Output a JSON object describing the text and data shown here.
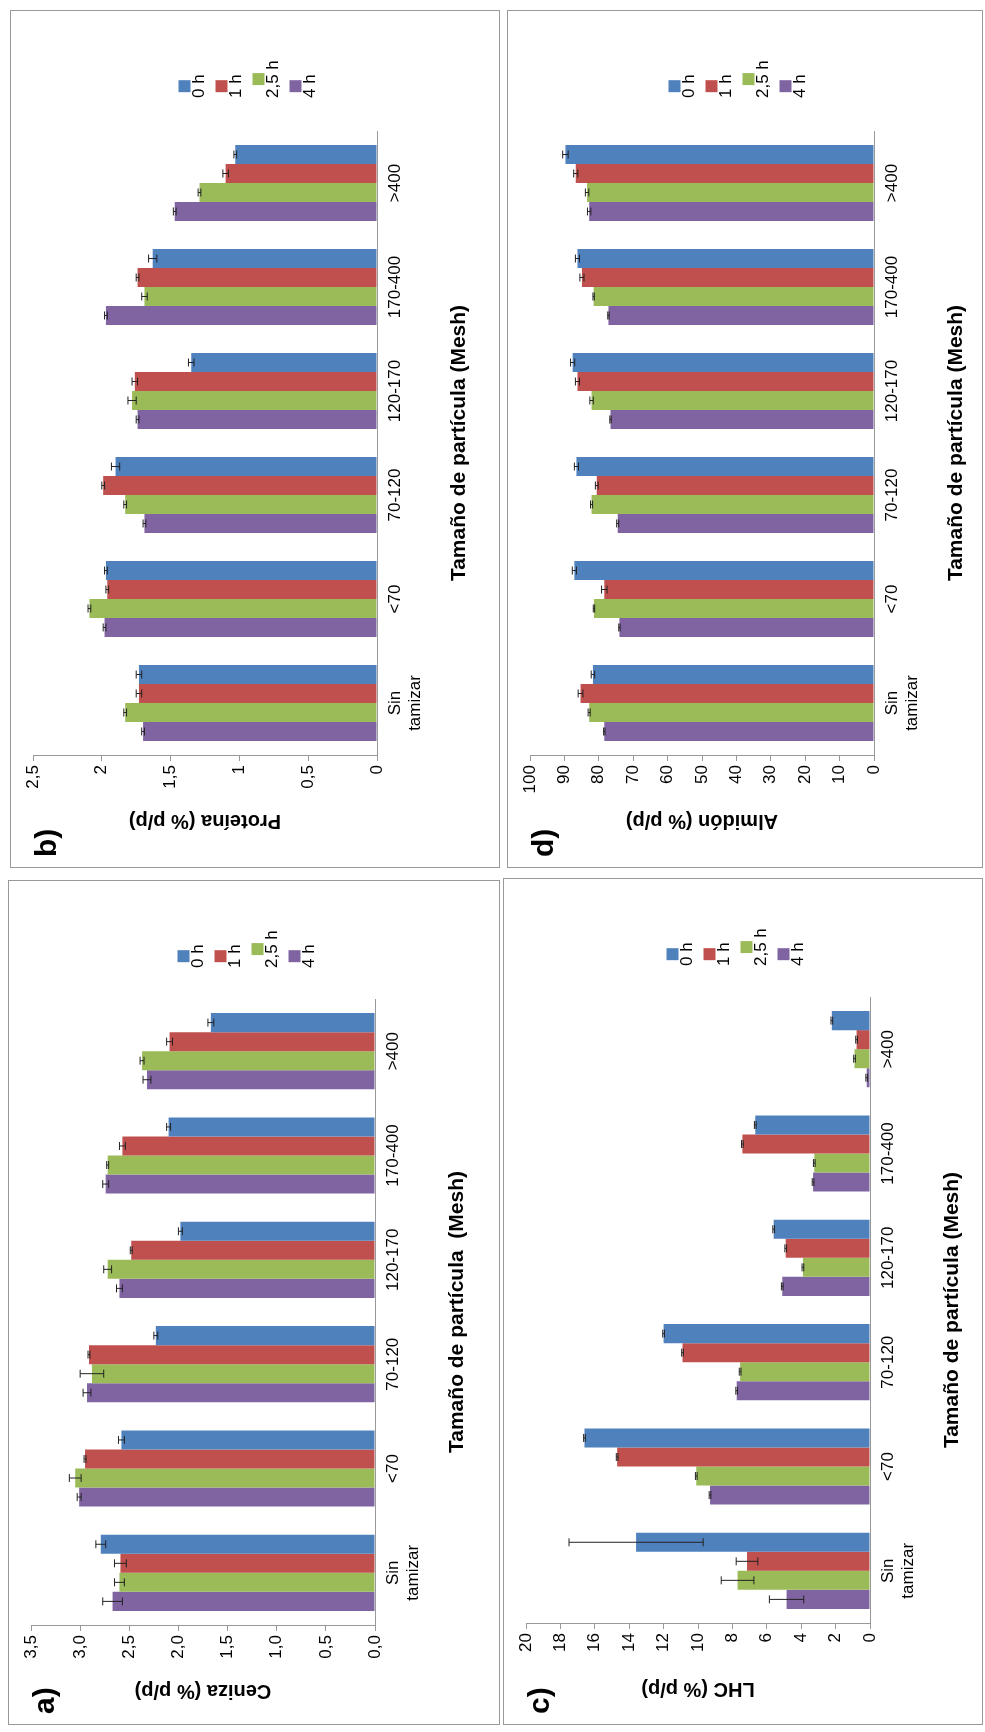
{
  "chart_data": [
    {
      "type": "bar",
      "orientation": "horizontal",
      "title": "b)",
      "ylabel": "Tamaño de partícula (Mesh)",
      "xlabel": "Proteína (% p/p)",
      "categories": [
        ">400",
        "170-400",
        "120-170",
        "70-120",
        "<70",
        "Sin tamizar"
      ],
      "legend": "top",
      "xlim": [
        2.5,
        0
      ],
      "xticks": [
        0,
        {
          "value": 0.5,
          "label": "0,5"
        },
        1,
        {
          "value": 1.5,
          "label": "1,5"
        },
        2,
        {
          "value": 2.5,
          "label": "2,5"
        }
      ],
      "series": [
        {
          "name": "0 h",
          "color": "#4f81bd",
          "values": [
            1.03,
            1.63,
            1.35,
            1.9,
            1.97,
            1.73
          ],
          "errors": [
            0.01,
            0.03,
            0.02,
            0.03,
            0.01,
            0.02
          ]
        },
        {
          "name": "1 h",
          "color": "#c0504d",
          "values": [
            1.1,
            1.74,
            1.76,
            1.99,
            1.96,
            1.73
          ],
          "errors": [
            0.02,
            0.01,
            0.02,
            0.01,
            0.01,
            0.02
          ]
        },
        {
          "name": "2,5 h",
          "color": "#9bbb59",
          "values": [
            1.29,
            1.69,
            1.78,
            1.83,
            2.09,
            1.83
          ],
          "errors": [
            0.01,
            0.02,
            0.03,
            0.01,
            0.01,
            0.01
          ]
        },
        {
          "name": "4 h",
          "color": "#8064a2",
          "values": [
            1.47,
            1.97,
            1.74,
            1.69,
            1.98,
            1.7
          ],
          "errors": [
            0.01,
            0.01,
            0.01,
            0.01,
            0.01,
            0.01
          ]
        }
      ]
    },
    {
      "type": "bar",
      "orientation": "horizontal",
      "title": "d)",
      "ylabel": "Tamaño de partícula (Mesh)",
      "xlabel": "Almidón (% p/p)",
      "categories": [
        ">400",
        "170-400",
        "120-170",
        "70-120",
        "<70",
        "Sin tamizar"
      ],
      "legend": "top",
      "xlim": [
        100,
        0
      ],
      "xticks": [
        0,
        10,
        20,
        30,
        40,
        50,
        60,
        70,
        80,
        90,
        100
      ],
      "series": [
        {
          "name": "0 h",
          "color": "#4f81bd",
          "values": [
            89.7,
            86.2,
            87.6,
            86.5,
            87.1,
            81.7
          ],
          "errors": [
            0.8,
            0.6,
            0.6,
            0.6,
            0.6,
            0.5
          ]
        },
        {
          "name": "1 h",
          "color": "#c0504d",
          "values": [
            86.7,
            84.9,
            86.2,
            80.6,
            78.4,
            85.3
          ],
          "errors": [
            0.6,
            0.6,
            0.6,
            0.4,
            0.8,
            0.7
          ]
        },
        {
          "name": "2,5 h",
          "color": "#9bbb59",
          "values": [
            83.4,
            81.5,
            82.1,
            82.1,
            81.4,
            82.8
          ],
          "errors": [
            0.5,
            0.2,
            0.5,
            0.3,
            0.2,
            0.3
          ]
        },
        {
          "name": "4 h",
          "color": "#8064a2",
          "values": [
            82.8,
            77.2,
            76.6,
            74.5,
            74.0,
            78.4
          ],
          "errors": [
            0.5,
            0.2,
            0.2,
            0.3,
            0.2,
            0.2
          ]
        }
      ]
    },
    {
      "type": "bar",
      "orientation": "horizontal",
      "title": "a)",
      "ylabel": "Tamaño de partícula  (Mesh)",
      "xlabel": "Ceniza (% p/p)",
      "categories": [
        ">400",
        "170-400",
        "120-170",
        "70-120",
        "<70",
        "Sin tamizar"
      ],
      "legend": "top",
      "xlim": [
        3.5,
        0
      ],
      "xticks": [
        {
          "value": 0,
          "label": "0,0"
        },
        {
          "value": 0.5,
          "label": "0,5"
        },
        {
          "value": 1,
          "label": "1,0"
        },
        {
          "value": 1.5,
          "label": "1,5"
        },
        {
          "value": 2,
          "label": "2,0"
        },
        {
          "value": 2.5,
          "label": "2,5"
        },
        {
          "value": 3,
          "label": "3,0"
        },
        {
          "value": 3.5,
          "label": "3,5"
        }
      ],
      "series": [
        {
          "name": "0 h",
          "color": "#4f81bd",
          "values": [
            1.67,
            2.1,
            1.98,
            2.23,
            2.58,
            2.79
          ],
          "errors": [
            0.03,
            0.02,
            0.02,
            0.02,
            0.03,
            0.05
          ]
        },
        {
          "name": "1 h",
          "color": "#c0504d",
          "values": [
            2.09,
            2.57,
            2.48,
            2.91,
            2.95,
            2.59
          ],
          "errors": [
            0.03,
            0.03,
            0.01,
            0.01,
            0.01,
            0.06
          ]
        },
        {
          "name": "2,5 h",
          "color": "#9bbb59",
          "values": [
            2.37,
            2.72,
            2.72,
            2.88,
            3.05,
            2.6
          ],
          "errors": [
            0.02,
            0.01,
            0.04,
            0.12,
            0.06,
            0.05
          ]
        },
        {
          "name": "4 h",
          "color": "#8064a2",
          "values": [
            2.32,
            2.74,
            2.6,
            2.93,
            3.01,
            2.67
          ],
          "errors": [
            0.04,
            0.03,
            0.03,
            0.04,
            0.02,
            0.1
          ]
        }
      ]
    },
    {
      "type": "bar",
      "orientation": "horizontal",
      "title": "c)",
      "ylabel": "Tamaño de partícula (Mesh)",
      "xlabel": "LHC (% p/p)",
      "categories": [
        ">400",
        "170-400",
        "120-170",
        "70-120",
        "<70",
        "Sin tamizar"
      ],
      "legend": "top",
      "xlim": [
        20,
        0
      ],
      "xticks": [
        0,
        2,
        4,
        6,
        8,
        10,
        12,
        14,
        16,
        18,
        20
      ],
      "series": [
        {
          "name": "0 h",
          "color": "#4f81bd",
          "values": [
            2.22,
            6.67,
            5.6,
            12.0,
            16.6,
            13.6
          ],
          "errors": [
            0.05,
            0.05,
            0.05,
            0.05,
            0.05,
            3.9
          ]
        },
        {
          "name": "1 h",
          "color": "#c0504d",
          "values": [
            0.78,
            7.42,
            4.9,
            10.9,
            14.7,
            7.15
          ],
          "errors": [
            0.05,
            0.05,
            0.05,
            0.05,
            0.05,
            0.63
          ]
        },
        {
          "name": "2,5 h",
          "color": "#9bbb59",
          "values": [
            0.9,
            3.24,
            3.9,
            7.55,
            10.1,
            7.7
          ],
          "errors": [
            0.05,
            0.05,
            0.05,
            0.05,
            0.05,
            0.95
          ]
        },
        {
          "name": "4 h",
          "color": "#8064a2",
          "values": [
            0.19,
            3.31,
            5.1,
            7.75,
            9.3,
            4.85
          ],
          "errors": [
            0.05,
            0.05,
            0.05,
            0.05,
            0.05,
            1.0
          ]
        }
      ]
    }
  ]
}
